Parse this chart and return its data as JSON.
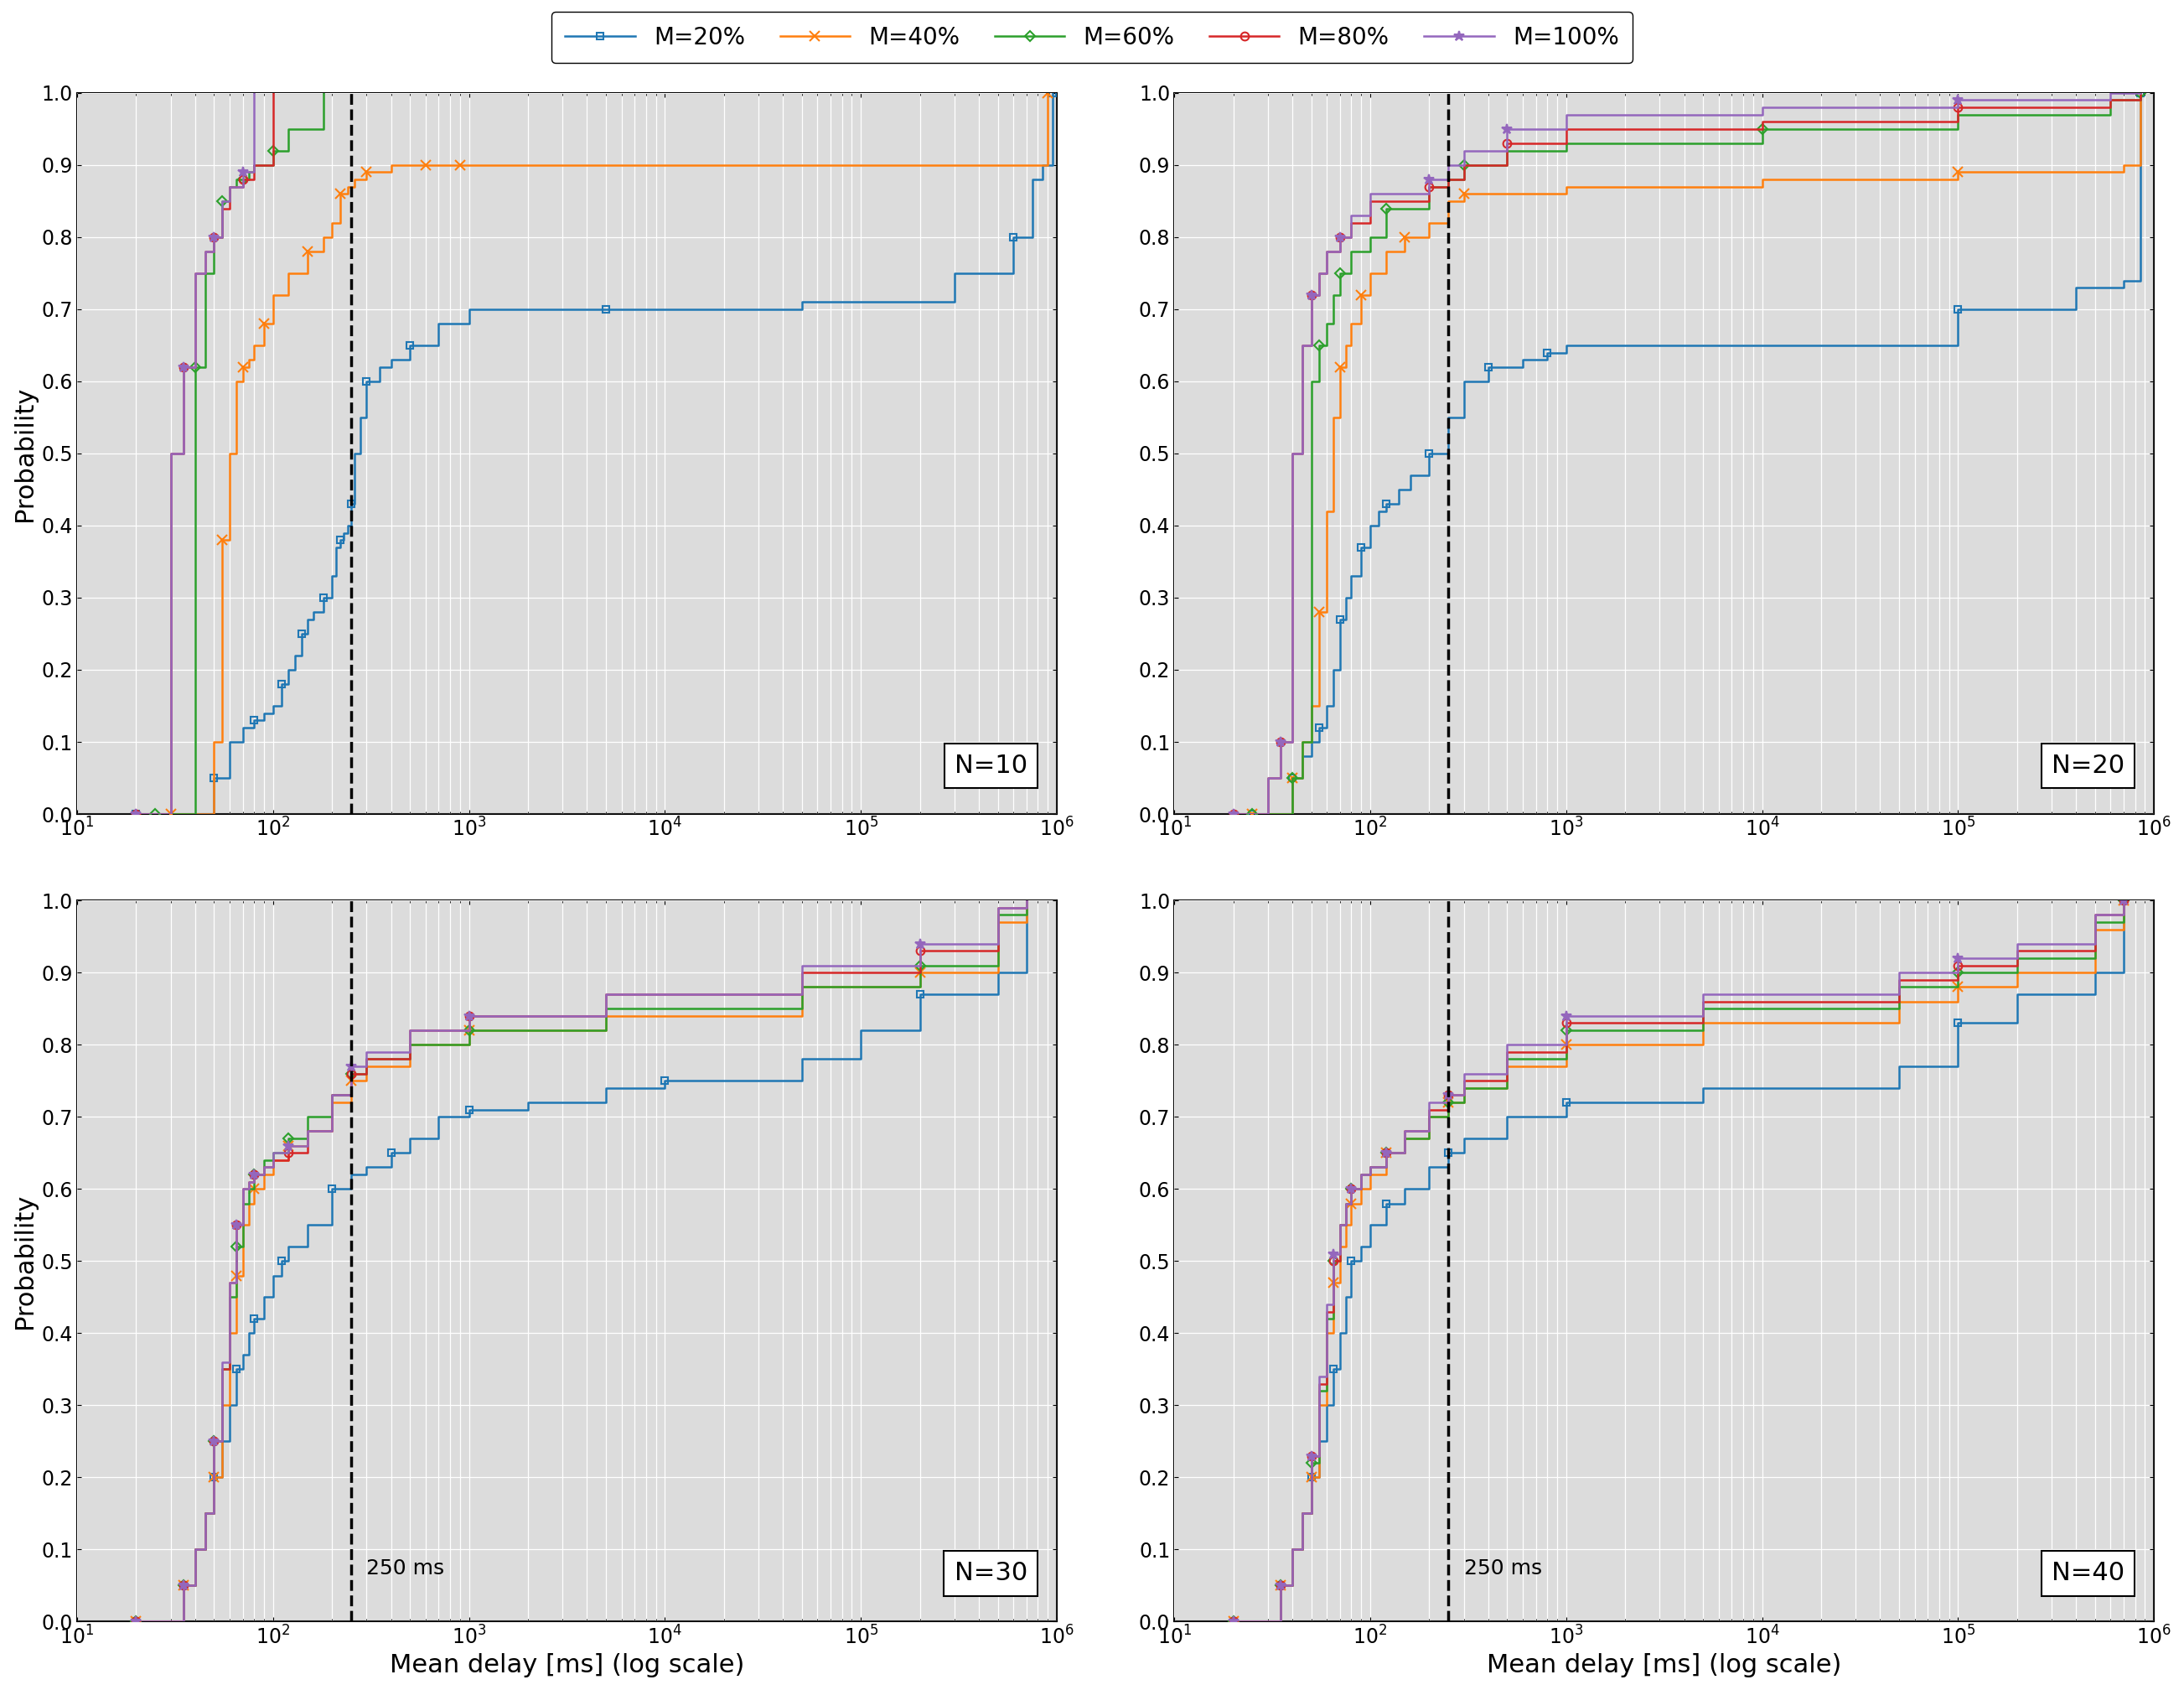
{
  "series_labels": [
    "M=20%",
    "M=40%",
    "M=60%",
    "M=80%",
    "M=100%"
  ],
  "series_colors": [
    "#1f77b4",
    "#ff7f0e",
    "#2ca02c",
    "#d62728",
    "#9467bd"
  ],
  "series_markers": [
    "s",
    "x",
    "D",
    "o",
    "*"
  ],
  "series_markersizes": [
    6,
    9,
    6,
    7,
    9
  ],
  "series_markerfill": [
    "none",
    "full",
    "none",
    "none",
    "full"
  ],
  "subplot_titles": [
    "N=10",
    "N=20",
    "N=30",
    "N=40"
  ],
  "threshold_ms": 250,
  "xlabel": "Mean delay [ms] (log scale)",
  "ylabel": "Probability",
  "xlim": [
    10,
    1000000
  ],
  "ylim": [
    0.0,
    1.0
  ],
  "threshold_label": "250 ms",
  "background_color": "#dcdcdc",
  "N10": {
    "M20": {
      "x": [
        20,
        30,
        40,
        50,
        60,
        70,
        80,
        90,
        100,
        110,
        120,
        130,
        140,
        150,
        160,
        180,
        200,
        210,
        220,
        230,
        240,
        250,
        260,
        280,
        300,
        350,
        400,
        500,
        700,
        1000,
        5000,
        50000,
        300000,
        600000,
        750000,
        850000,
        950000
      ],
      "y": [
        0.0,
        0.0,
        0.0,
        0.05,
        0.1,
        0.12,
        0.13,
        0.14,
        0.15,
        0.18,
        0.2,
        0.22,
        0.25,
        0.27,
        0.28,
        0.3,
        0.33,
        0.37,
        0.38,
        0.39,
        0.4,
        0.43,
        0.5,
        0.55,
        0.6,
        0.62,
        0.63,
        0.65,
        0.68,
        0.7,
        0.7,
        0.71,
        0.75,
        0.8,
        0.88,
        0.9,
        1.0
      ]
    },
    "M40": {
      "x": [
        30,
        40,
        50,
        55,
        60,
        65,
        70,
        75,
        80,
        90,
        100,
        120,
        150,
        180,
        200,
        220,
        240,
        260,
        300,
        400,
        500,
        600,
        700,
        800,
        900,
        50000,
        700000,
        900000
      ],
      "y": [
        0.0,
        0.0,
        0.1,
        0.38,
        0.5,
        0.6,
        0.62,
        0.63,
        0.65,
        0.68,
        0.72,
        0.75,
        0.78,
        0.8,
        0.82,
        0.86,
        0.87,
        0.88,
        0.89,
        0.9,
        0.9,
        0.9,
        0.9,
        0.9,
        0.9,
        0.9,
        0.9,
        1.0
      ]
    },
    "M60": {
      "x": [
        25,
        30,
        35,
        40,
        45,
        50,
        55,
        60,
        65,
        70,
        75,
        80,
        100,
        120,
        180
      ],
      "y": [
        0.0,
        0.0,
        0.0,
        0.62,
        0.75,
        0.8,
        0.85,
        0.87,
        0.88,
        0.88,
        0.89,
        0.9,
        0.92,
        0.95,
        1.0
      ]
    },
    "M80": {
      "x": [
        20,
        25,
        30,
        35,
        40,
        45,
        50,
        55,
        60,
        70,
        80,
        100
      ],
      "y": [
        0.0,
        0.0,
        0.5,
        0.62,
        0.75,
        0.78,
        0.8,
        0.84,
        0.87,
        0.88,
        0.9,
        1.0
      ]
    },
    "M100": {
      "x": [
        20,
        25,
        30,
        35,
        40,
        45,
        50,
        55,
        60,
        70,
        80
      ],
      "y": [
        0.0,
        0.0,
        0.5,
        0.62,
        0.75,
        0.78,
        0.8,
        0.85,
        0.87,
        0.89,
        1.0
      ]
    }
  },
  "N20": {
    "M20": {
      "x": [
        25,
        30,
        35,
        40,
        45,
        50,
        55,
        60,
        65,
        70,
        75,
        80,
        90,
        100,
        110,
        120,
        140,
        160,
        200,
        250,
        300,
        400,
        600,
        700,
        800,
        1000,
        5000,
        100000,
        400000,
        700000,
        850000
      ],
      "y": [
        0.0,
        0.0,
        0.0,
        0.05,
        0.08,
        0.1,
        0.12,
        0.15,
        0.2,
        0.27,
        0.3,
        0.33,
        0.37,
        0.4,
        0.42,
        0.43,
        0.45,
        0.47,
        0.5,
        0.55,
        0.6,
        0.62,
        0.63,
        0.63,
        0.64,
        0.65,
        0.65,
        0.7,
        0.73,
        0.74,
        1.0
      ]
    },
    "M40": {
      "x": [
        25,
        30,
        35,
        40,
        45,
        50,
        55,
        60,
        65,
        70,
        75,
        80,
        90,
        100,
        120,
        150,
        200,
        250,
        300,
        1000,
        10000,
        100000,
        700000,
        850000
      ],
      "y": [
        0.0,
        0.0,
        0.0,
        0.05,
        0.1,
        0.15,
        0.28,
        0.42,
        0.55,
        0.62,
        0.65,
        0.68,
        0.72,
        0.75,
        0.78,
        0.8,
        0.82,
        0.85,
        0.86,
        0.87,
        0.88,
        0.89,
        0.9,
        1.0
      ]
    },
    "M60": {
      "x": [
        25,
        30,
        35,
        40,
        45,
        50,
        55,
        60,
        65,
        70,
        80,
        100,
        120,
        200,
        250,
        300,
        500,
        1000,
        10000,
        100000,
        600000,
        850000
      ],
      "y": [
        0.0,
        0.0,
        0.0,
        0.05,
        0.1,
        0.6,
        0.65,
        0.68,
        0.72,
        0.75,
        0.78,
        0.8,
        0.84,
        0.87,
        0.88,
        0.9,
        0.92,
        0.93,
        0.95,
        0.97,
        0.99,
        1.0
      ]
    },
    "M80": {
      "x": [
        20,
        25,
        30,
        35,
        40,
        45,
        50,
        55,
        60,
        70,
        80,
        100,
        200,
        250,
        300,
        500,
        1000,
        10000,
        100000,
        600000,
        850000
      ],
      "y": [
        0.0,
        0.0,
        0.05,
        0.1,
        0.5,
        0.65,
        0.72,
        0.75,
        0.78,
        0.8,
        0.82,
        0.85,
        0.87,
        0.88,
        0.9,
        0.93,
        0.95,
        0.96,
        0.98,
        0.99,
        1.0
      ]
    },
    "M100": {
      "x": [
        20,
        25,
        30,
        35,
        40,
        45,
        50,
        55,
        60,
        70,
        80,
        100,
        200,
        250,
        300,
        500,
        1000,
        10000,
        100000,
        600000,
        850000
      ],
      "y": [
        0.0,
        0.0,
        0.05,
        0.1,
        0.5,
        0.65,
        0.72,
        0.75,
        0.78,
        0.8,
        0.83,
        0.86,
        0.88,
        0.9,
        0.92,
        0.95,
        0.97,
        0.98,
        0.99,
        1.0,
        1.0
      ]
    }
  },
  "N30": {
    "M20": {
      "x": [
        20,
        25,
        30,
        35,
        40,
        45,
        50,
        55,
        60,
        65,
        70,
        75,
        80,
        90,
        100,
        110,
        120,
        150,
        200,
        250,
        300,
        400,
        500,
        700,
        1000,
        2000,
        5000,
        10000,
        50000,
        100000,
        200000,
        500000,
        700000
      ],
      "y": [
        0.0,
        0.0,
        0.0,
        0.05,
        0.1,
        0.15,
        0.2,
        0.25,
        0.3,
        0.35,
        0.37,
        0.4,
        0.42,
        0.45,
        0.48,
        0.5,
        0.52,
        0.55,
        0.6,
        0.62,
        0.63,
        0.65,
        0.67,
        0.7,
        0.71,
        0.72,
        0.74,
        0.75,
        0.78,
        0.82,
        0.87,
        0.9,
        1.0
      ]
    },
    "M40": {
      "x": [
        20,
        25,
        30,
        35,
        40,
        45,
        50,
        55,
        60,
        65,
        70,
        75,
        80,
        90,
        100,
        120,
        150,
        200,
        250,
        300,
        500,
        1000,
        5000,
        50000,
        200000,
        500000,
        700000
      ],
      "y": [
        0.0,
        0.0,
        0.0,
        0.05,
        0.1,
        0.15,
        0.2,
        0.3,
        0.4,
        0.48,
        0.55,
        0.58,
        0.6,
        0.62,
        0.64,
        0.66,
        0.68,
        0.72,
        0.75,
        0.77,
        0.8,
        0.82,
        0.84,
        0.88,
        0.9,
        0.97,
        1.0
      ]
    },
    "M60": {
      "x": [
        20,
        25,
        30,
        35,
        40,
        45,
        50,
        55,
        60,
        65,
        70,
        75,
        80,
        90,
        100,
        120,
        150,
        200,
        250,
        300,
        500,
        1000,
        5000,
        50000,
        200000,
        500000,
        700000
      ],
      "y": [
        0.0,
        0.0,
        0.0,
        0.05,
        0.1,
        0.15,
        0.25,
        0.35,
        0.45,
        0.52,
        0.58,
        0.6,
        0.62,
        0.64,
        0.65,
        0.67,
        0.7,
        0.73,
        0.76,
        0.78,
        0.8,
        0.82,
        0.85,
        0.88,
        0.91,
        0.98,
        1.0
      ]
    },
    "M80": {
      "x": [
        20,
        25,
        30,
        35,
        40,
        45,
        50,
        55,
        60,
        65,
        70,
        75,
        80,
        90,
        100,
        120,
        150,
        200,
        250,
        300,
        500,
        1000,
        5000,
        50000,
        200000,
        500000,
        700000
      ],
      "y": [
        0.0,
        0.0,
        0.0,
        0.05,
        0.1,
        0.15,
        0.25,
        0.35,
        0.47,
        0.55,
        0.6,
        0.61,
        0.62,
        0.63,
        0.64,
        0.65,
        0.68,
        0.73,
        0.76,
        0.78,
        0.82,
        0.84,
        0.87,
        0.9,
        0.93,
        0.99,
        1.0
      ]
    },
    "M100": {
      "x": [
        20,
        25,
        30,
        35,
        40,
        45,
        50,
        55,
        60,
        65,
        70,
        75,
        80,
        90,
        100,
        120,
        150,
        200,
        250,
        300,
        500,
        1000,
        5000,
        50000,
        200000,
        500000,
        700000
      ],
      "y": [
        0.0,
        0.0,
        0.0,
        0.05,
        0.1,
        0.15,
        0.25,
        0.36,
        0.47,
        0.55,
        0.6,
        0.61,
        0.62,
        0.63,
        0.65,
        0.66,
        0.68,
        0.73,
        0.77,
        0.79,
        0.82,
        0.84,
        0.87,
        0.91,
        0.94,
        0.99,
        1.0
      ]
    }
  },
  "N40": {
    "M20": {
      "x": [
        20,
        25,
        30,
        35,
        40,
        45,
        50,
        55,
        60,
        65,
        70,
        75,
        80,
        90,
        100,
        120,
        150,
        200,
        250,
        300,
        500,
        1000,
        5000,
        50000,
        100000,
        200000,
        500000,
        700000
      ],
      "y": [
        0.0,
        0.0,
        0.0,
        0.05,
        0.1,
        0.15,
        0.2,
        0.25,
        0.3,
        0.35,
        0.4,
        0.45,
        0.5,
        0.52,
        0.55,
        0.58,
        0.6,
        0.63,
        0.65,
        0.67,
        0.7,
        0.72,
        0.74,
        0.77,
        0.83,
        0.87,
        0.9,
        1.0
      ]
    },
    "M40": {
      "x": [
        20,
        25,
        30,
        35,
        40,
        45,
        50,
        55,
        60,
        65,
        70,
        75,
        80,
        90,
        100,
        120,
        150,
        200,
        250,
        300,
        500,
        1000,
        5000,
        50000,
        100000,
        200000,
        500000,
        700000
      ],
      "y": [
        0.0,
        0.0,
        0.0,
        0.05,
        0.1,
        0.15,
        0.2,
        0.3,
        0.4,
        0.47,
        0.52,
        0.55,
        0.58,
        0.6,
        0.62,
        0.65,
        0.67,
        0.7,
        0.72,
        0.74,
        0.77,
        0.8,
        0.83,
        0.86,
        0.88,
        0.9,
        0.96,
        1.0
      ]
    },
    "M60": {
      "x": [
        20,
        25,
        30,
        35,
        40,
        45,
        50,
        55,
        60,
        65,
        70,
        75,
        80,
        90,
        100,
        120,
        150,
        200,
        250,
        300,
        500,
        1000,
        5000,
        50000,
        100000,
        200000,
        500000,
        700000
      ],
      "y": [
        0.0,
        0.0,
        0.0,
        0.05,
        0.1,
        0.15,
        0.22,
        0.32,
        0.42,
        0.5,
        0.55,
        0.58,
        0.6,
        0.62,
        0.63,
        0.65,
        0.67,
        0.7,
        0.72,
        0.74,
        0.78,
        0.82,
        0.85,
        0.88,
        0.9,
        0.92,
        0.97,
        1.0
      ]
    },
    "M80": {
      "x": [
        20,
        25,
        30,
        35,
        40,
        45,
        50,
        55,
        60,
        65,
        70,
        75,
        80,
        90,
        100,
        120,
        150,
        200,
        250,
        300,
        500,
        1000,
        5000,
        50000,
        100000,
        200000,
        500000,
        700000
      ],
      "y": [
        0.0,
        0.0,
        0.0,
        0.05,
        0.1,
        0.15,
        0.23,
        0.33,
        0.43,
        0.5,
        0.55,
        0.58,
        0.6,
        0.62,
        0.63,
        0.65,
        0.68,
        0.71,
        0.73,
        0.75,
        0.79,
        0.83,
        0.86,
        0.89,
        0.91,
        0.93,
        0.98,
        1.0
      ]
    },
    "M100": {
      "x": [
        20,
        25,
        30,
        35,
        40,
        45,
        50,
        55,
        60,
        65,
        70,
        75,
        80,
        90,
        100,
        120,
        150,
        200,
        250,
        300,
        500,
        1000,
        5000,
        50000,
        100000,
        200000,
        500000,
        700000
      ],
      "y": [
        0.0,
        0.0,
        0.0,
        0.05,
        0.1,
        0.15,
        0.23,
        0.34,
        0.44,
        0.51,
        0.55,
        0.58,
        0.6,
        0.62,
        0.63,
        0.65,
        0.68,
        0.72,
        0.73,
        0.76,
        0.8,
        0.84,
        0.87,
        0.9,
        0.92,
        0.94,
        0.98,
        1.0
      ]
    }
  }
}
